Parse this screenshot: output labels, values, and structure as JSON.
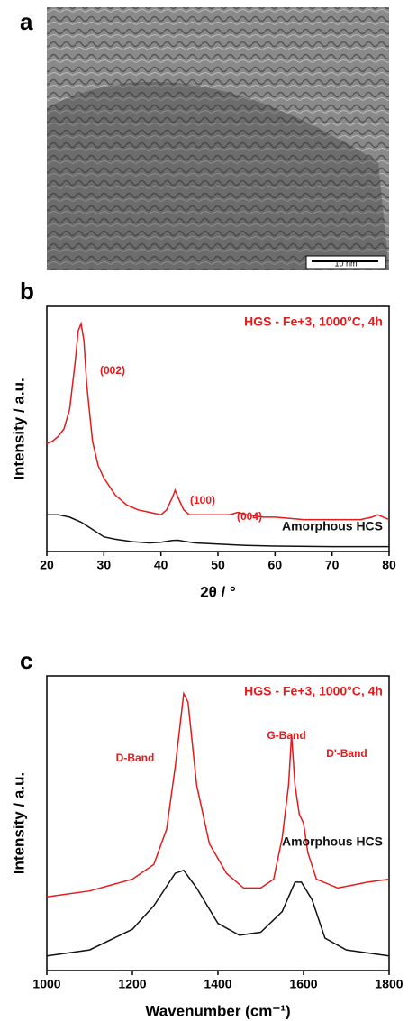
{
  "image": {
    "panel_label": "a",
    "scale_bar": "10 nm"
  },
  "chart_data": [
    {
      "type": "line",
      "panel_label": "b",
      "x_label": "2θ  / °",
      "y_label": "Intensity / a.u.",
      "xlim": [
        20,
        80
      ],
      "xticks": [
        20,
        30,
        40,
        50,
        60,
        70,
        80
      ],
      "ylim": [
        0,
        100
      ],
      "annotations": [
        "(002)",
        "(100)",
        "(004)"
      ],
      "series": [
        {
          "name": "HGS - Fe+3, 1000°C, 4h",
          "color": "#e41a1c",
          "x": [
            20,
            21,
            22,
            23,
            24,
            25,
            25.5,
            26,
            26.5,
            27,
            28,
            29,
            30,
            32,
            34,
            36,
            38,
            40,
            41,
            42,
            42.5,
            43,
            44,
            45,
            47,
            50,
            52,
            53.5,
            55,
            58,
            60,
            65,
            70,
            75,
            77,
            78,
            79,
            80
          ],
          "values": [
            44,
            45,
            47,
            50,
            58,
            78,
            90,
            93,
            86,
            68,
            45,
            35,
            30,
            23,
            19,
            17,
            16,
            15,
            17,
            22,
            25,
            22,
            17,
            15,
            15,
            15,
            15,
            16,
            15,
            14,
            14,
            13,
            13,
            13,
            14,
            15,
            14,
            13
          ]
        },
        {
          "name": "Amorphous HCS",
          "color": "#111111",
          "x": [
            20,
            22,
            24,
            26,
            28,
            30,
            32,
            35,
            38,
            40,
            42,
            43,
            44,
            46,
            50,
            55,
            60,
            70,
            80
          ],
          "values": [
            15,
            15,
            14,
            12,
            9,
            6,
            5,
            4,
            3.5,
            3.8,
            4.5,
            4.6,
            4.2,
            3.5,
            3,
            2.5,
            2.2,
            2,
            2
          ]
        }
      ]
    },
    {
      "type": "line",
      "panel_label": "c",
      "x_label": "Wavenumber (cm⁻¹)",
      "y_label": "Intensity / a.u.",
      "xlim": [
        1000,
        1800
      ],
      "xticks": [
        1000,
        1200,
        1400,
        1600,
        1800
      ],
      "ylim": [
        0,
        100
      ],
      "annotations": [
        "D-Band",
        "G-Band",
        "D'-Band"
      ],
      "series": [
        {
          "name": "HGS - Fe+3, 1000°C, 4h",
          "color": "#e41a1c",
          "x": [
            1000,
            1100,
            1200,
            1250,
            1280,
            1300,
            1320,
            1330,
            1350,
            1380,
            1420,
            1460,
            1500,
            1530,
            1550,
            1565,
            1572,
            1580,
            1590,
            1600,
            1610,
            1630,
            1680,
            1750,
            1800
          ],
          "values": [
            25,
            27,
            31,
            36,
            48,
            69,
            94,
            91,
            63,
            43,
            33,
            28,
            28,
            31,
            45,
            63,
            80,
            63,
            53,
            50,
            40,
            31,
            28,
            30,
            31
          ]
        },
        {
          "name": "Amorphous HCS",
          "color": "#111111",
          "x": [
            1000,
            1100,
            1200,
            1250,
            1300,
            1320,
            1350,
            1400,
            1450,
            1500,
            1550,
            1580,
            1595,
            1620,
            1650,
            1700,
            1800
          ],
          "values": [
            5,
            7,
            14,
            22,
            33,
            34,
            28,
            16,
            12,
            13,
            20,
            30,
            30,
            24,
            11,
            7,
            5
          ]
        }
      ]
    }
  ]
}
